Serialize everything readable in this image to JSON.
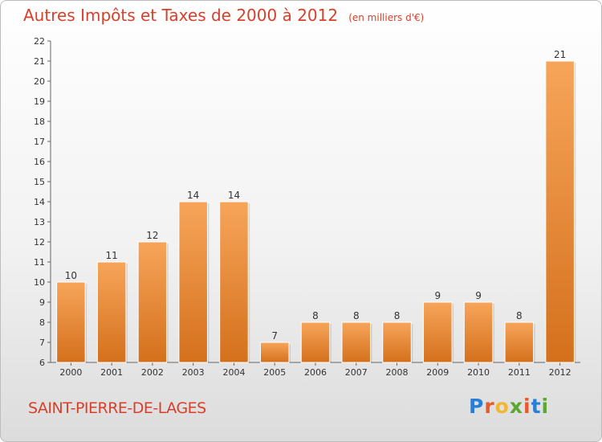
{
  "title": "Autres Impôts et Taxes de 2000 à 2012",
  "unit_note": "(en milliers d'€)",
  "commune": "SAINT-PIERRE-DE-LAGES",
  "logo_text": "Proxiti",
  "colors": {
    "title": "#d9402a",
    "bar_top": "#f7a55a",
    "bar_bottom": "#d4701c",
    "axis": "#555555"
  },
  "chart_data": {
    "type": "bar",
    "title": "Autres Impôts et Taxes de 2000 à 2012",
    "xlabel": "",
    "ylabel": "",
    "categories": [
      "2000",
      "2001",
      "2002",
      "2003",
      "2004",
      "2005",
      "2006",
      "2007",
      "2008",
      "2009",
      "2010",
      "2011",
      "2012"
    ],
    "values": [
      10,
      11,
      12,
      14,
      14,
      7,
      8,
      8,
      8,
      9,
      9,
      8,
      21
    ],
    "ylim": [
      6,
      22
    ],
    "yticks": [
      6,
      7,
      8,
      9,
      10,
      11,
      12,
      13,
      14,
      15,
      16,
      17,
      18,
      19,
      20,
      21,
      22
    ],
    "grid": false,
    "legend": "none"
  }
}
